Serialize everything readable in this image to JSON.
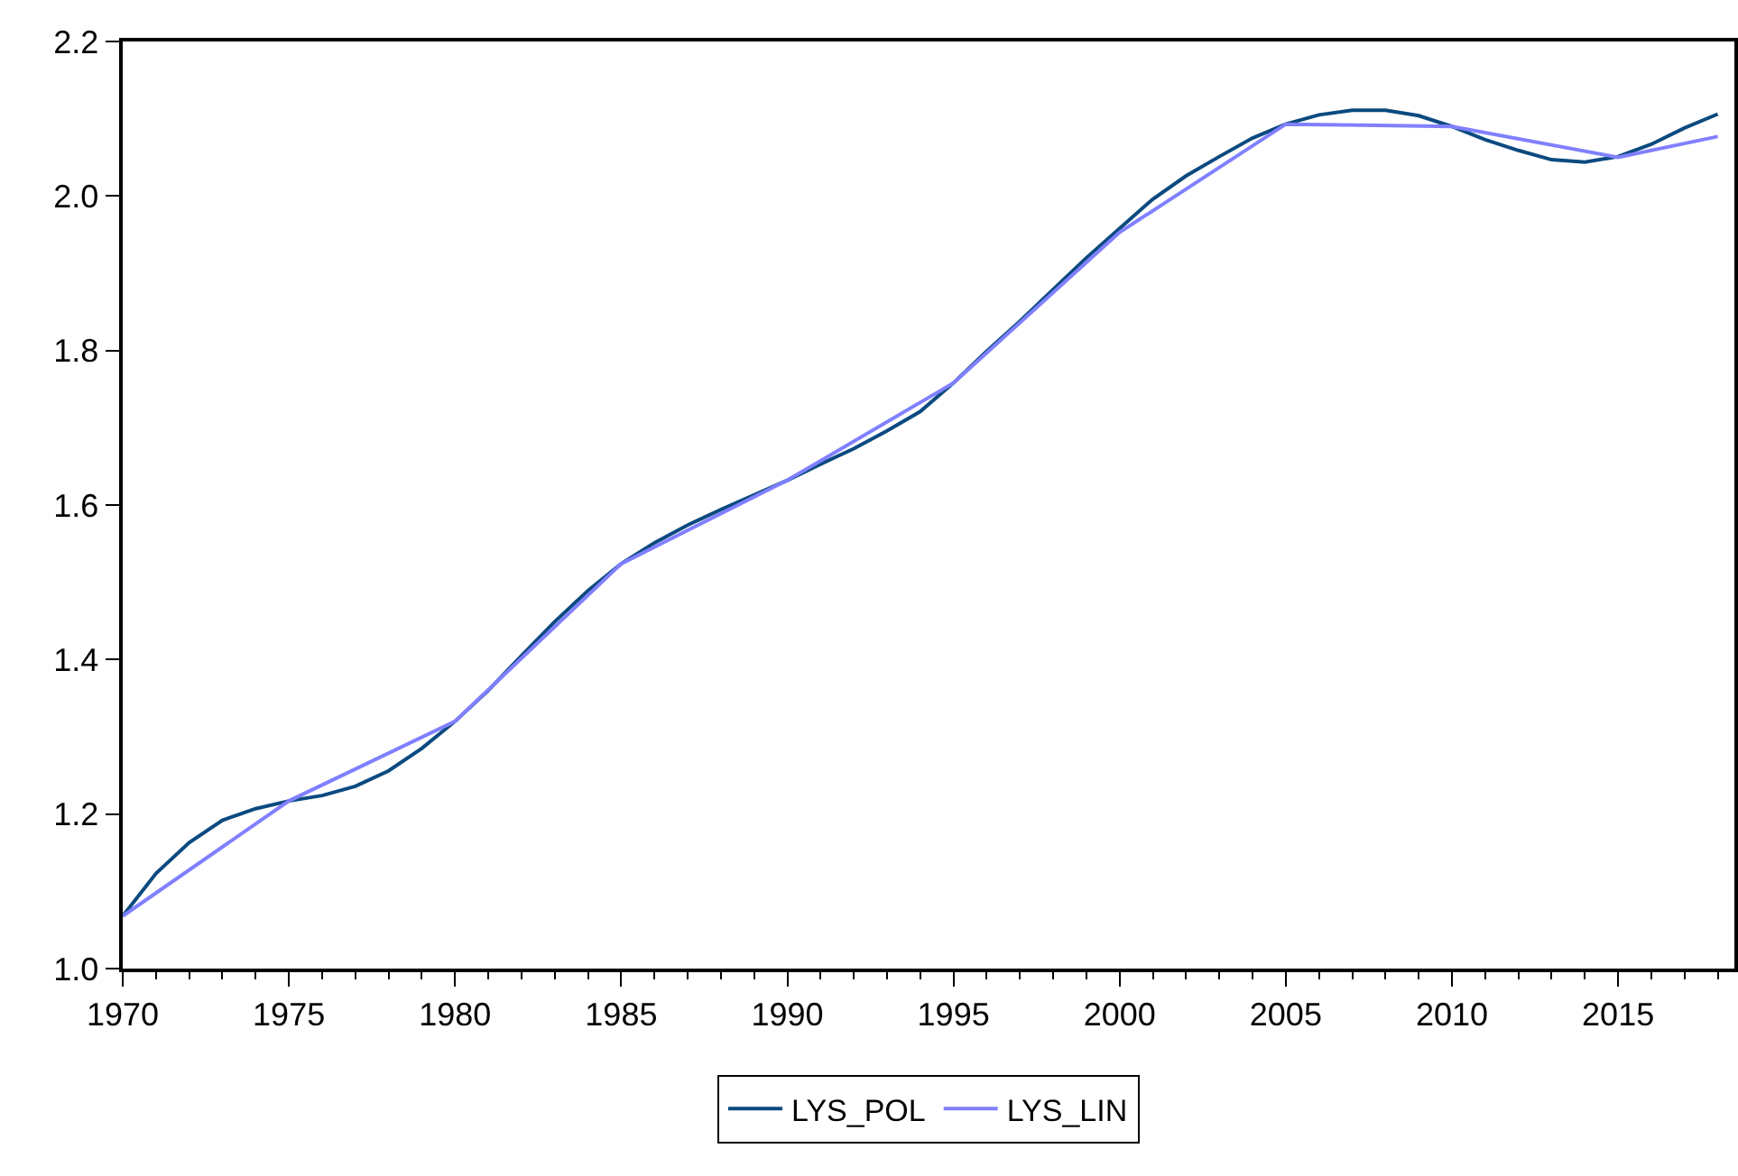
{
  "chart_data": {
    "type": "line",
    "x": [
      1970,
      1971,
      1972,
      1973,
      1974,
      1975,
      1976,
      1977,
      1978,
      1979,
      1980,
      1981,
      1982,
      1983,
      1984,
      1985,
      1986,
      1987,
      1988,
      1989,
      1990,
      1991,
      1992,
      1993,
      1994,
      1995,
      1996,
      1997,
      1998,
      1999,
      2000,
      2001,
      2002,
      2003,
      2004,
      2005,
      2006,
      2007,
      2008,
      2009,
      2010,
      2011,
      2012,
      2013,
      2014,
      2015,
      2016,
      2017,
      2018
    ],
    "series": [
      {
        "name": "LYS_POL",
        "color": "#0b4a80",
        "values": [
          1.068,
          1.123,
          1.163,
          1.192,
          1.207,
          1.217,
          1.224,
          1.236,
          1.256,
          1.285,
          1.32,
          1.36,
          1.405,
          1.449,
          1.489,
          1.524,
          1.551,
          1.574,
          1.594,
          1.613,
          1.632,
          1.653,
          1.673,
          1.696,
          1.721,
          1.758,
          1.799,
          1.838,
          1.879,
          1.92,
          1.958,
          1.996,
          2.026,
          2.051,
          2.075,
          2.093,
          2.105,
          2.111,
          2.111,
          2.104,
          2.09,
          2.073,
          2.059,
          2.047,
          2.044,
          2.051,
          2.067,
          2.088,
          2.106
        ]
      },
      {
        "name": "LYS_LIN",
        "color": "#8080ff",
        "x": [
          1970,
          1975,
          1980,
          1985,
          1990,
          1995,
          2000,
          2005,
          2010,
          2015,
          2018
        ],
        "values": [
          1.068,
          1.217,
          1.32,
          1.524,
          1.632,
          1.758,
          1.953,
          2.093,
          2.09,
          2.05,
          2.077
        ]
      }
    ],
    "xlim": [
      1970,
      2018.5
    ],
    "xticks": [
      1970,
      1975,
      1980,
      1985,
      1990,
      1995,
      2000,
      2005,
      2010,
      2015
    ],
    "ylim": [
      1.0,
      2.2
    ],
    "yticks": [
      {
        "value": 1.0,
        "label": "1.0"
      },
      1.2,
      1.4,
      1.6,
      1.8,
      {
        "value": 2.0,
        "label": "2.0"
      },
      2.2
    ],
    "legend": "bottom",
    "line_style": "solid",
    "marker": "none"
  }
}
